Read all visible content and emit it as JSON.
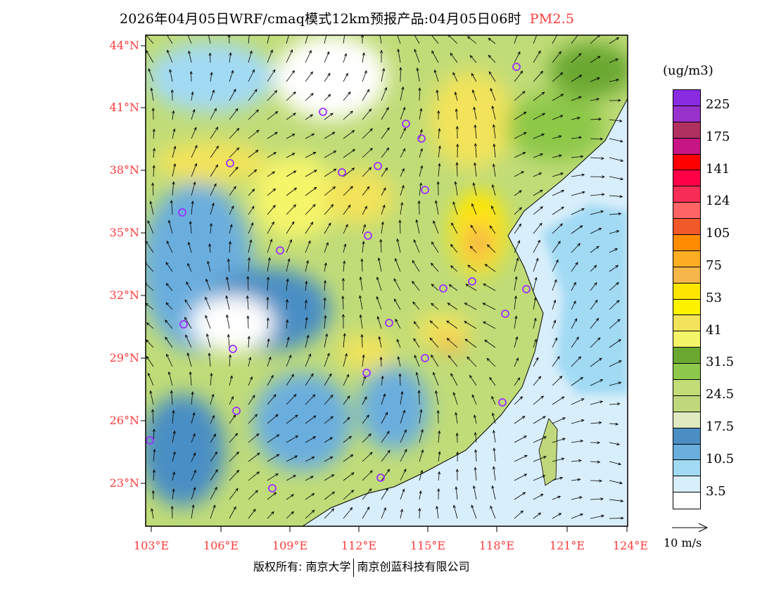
{
  "header": {
    "title": "2026年04月05日WRF/cmaq模式12km预报产品:04月05日06时",
    "pollutant": "PM2.5"
  },
  "map": {
    "lat_labels": [
      "44°N",
      "41°N",
      "38°N",
      "35°N",
      "32°N",
      "29°N",
      "26°N",
      "23°N"
    ],
    "lon_labels": [
      "103°E",
      "106°E",
      "109°E",
      "112°E",
      "115°E",
      "118°E",
      "121°E",
      "124°E"
    ],
    "marker_icon": "city-circle-icon",
    "marker_color": "#9b30ff"
  },
  "legend": {
    "unit": "(ug/m3)",
    "colors": [
      "#8a2be2",
      "#9932cc",
      "#b03060",
      "#c71585",
      "#ff0000",
      "#ff0048",
      "#f72d55",
      "#ff6464",
      "#f05a28",
      "#ff8c00",
      "#ffad22",
      "#f5b64a",
      "#ffe600",
      "#fff200",
      "#f2e35a",
      "#f5f56a",
      "#6aa832",
      "#8dc84a",
      "#c2dc78",
      "#c0d87c",
      "#e0eac0",
      "#4a8ec4",
      "#6aaede",
      "#a2daf4",
      "#d8eefa",
      "#ffffff"
    ],
    "labels": [
      "225",
      "175",
      "141",
      "124",
      "105",
      "75",
      "53",
      "41",
      "31.5",
      "24.5",
      "17.5",
      "10.5",
      "3.5"
    ],
    "wind_reference": "10 m/s"
  },
  "footer": {
    "copyright": "版权所有: 南京大学",
    "company": "南京创蓝科技有限公司"
  }
}
